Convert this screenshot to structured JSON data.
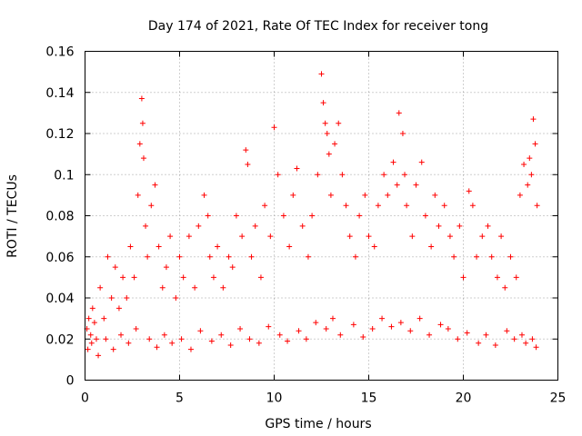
{
  "chart_data": {
    "type": "scatter",
    "title": "Day 174 of 2021, Rate Of TEC Index for receiver tong",
    "xlabel": "GPS time / hours",
    "ylabel": "ROTI / TECUs",
    "xlim": [
      0,
      25
    ],
    "ylim": [
      0,
      0.16
    ],
    "x_ticks": [
      0,
      5,
      10,
      15,
      20,
      25
    ],
    "y_ticks": [
      0,
      0.02,
      0.04,
      0.06,
      0.08,
      0.1,
      0.12,
      0.14,
      0.16
    ],
    "x_tick_labels": [
      "0",
      "5",
      "10",
      "15",
      "20",
      "25"
    ],
    "y_tick_labels": [
      "0",
      "0.02",
      "0.04",
      "0.06",
      "0.08",
      "0.1",
      "0.12",
      "0.14",
      "0.16"
    ],
    "grid": true,
    "marker": "+",
    "color": "#ff0000",
    "series": [
      {
        "x": [
          0.1,
          0.2,
          0.3,
          0.4,
          0.5,
          0.6,
          0.8,
          1.0,
          1.2,
          1.4,
          1.6,
          1.8,
          2.0,
          2.2,
          2.4,
          2.6,
          2.8,
          2.9,
          3.0,
          3.05,
          3.1,
          3.2,
          3.3,
          3.5,
          3.7,
          3.9,
          4.1,
          4.3,
          4.5,
          4.8,
          5.0,
          5.2,
          5.5,
          5.8,
          6.0,
          6.3,
          6.5,
          6.6,
          6.8,
          7.0,
          7.3,
          7.6,
          7.8,
          8.0,
          8.3,
          8.5,
          8.6,
          8.8,
          9.0,
          9.3,
          9.5,
          9.8,
          10.0,
          10.2,
          10.5,
          10.8,
          11.0,
          11.2,
          11.5,
          11.8,
          12.0,
          12.3,
          12.5,
          12.6,
          12.7,
          12.8,
          12.9,
          13.0,
          13.2,
          13.4,
          13.6,
          13.8,
          14.0,
          14.3,
          14.5,
          14.8,
          15.0,
          15.3,
          15.5,
          15.8,
          16.0,
          16.3,
          16.5,
          16.6,
          16.8,
          16.9,
          17.0,
          17.3,
          17.5,
          17.8,
          18.0,
          18.3,
          18.5,
          18.7,
          19.0,
          19.3,
          19.5,
          19.8,
          20.0,
          20.3,
          20.5,
          20.7,
          21.0,
          21.3,
          21.5,
          21.8,
          22.0,
          22.2,
          22.5,
          22.8,
          23.0,
          23.2,
          23.4,
          23.5,
          23.6,
          23.7,
          23.8,
          23.9,
          0.15,
          0.35,
          0.7,
          1.1,
          1.5,
          1.9,
          2.3,
          2.7,
          3.4,
          3.8,
          4.2,
          4.6,
          5.1,
          5.6,
          6.1,
          6.7,
          7.2,
          7.7,
          8.2,
          8.7,
          9.2,
          9.7,
          10.3,
          10.7,
          11.3,
          11.7,
          12.2,
          12.75,
          13.1,
          13.5,
          14.2,
          14.7,
          15.2,
          15.7,
          16.2,
          16.7,
          17.2,
          17.7,
          18.2,
          18.8,
          19.2,
          19.7,
          20.2,
          20.8,
          21.2,
          21.7,
          22.3,
          22.7,
          23.1,
          23.3,
          23.65,
          23.85
        ],
        "y": [
          0.025,
          0.03,
          0.022,
          0.035,
          0.028,
          0.02,
          0.045,
          0.03,
          0.06,
          0.04,
          0.055,
          0.035,
          0.05,
          0.04,
          0.065,
          0.05,
          0.09,
          0.115,
          0.137,
          0.125,
          0.108,
          0.075,
          0.06,
          0.085,
          0.095,
          0.065,
          0.045,
          0.055,
          0.07,
          0.04,
          0.06,
          0.05,
          0.07,
          0.045,
          0.075,
          0.09,
          0.08,
          0.06,
          0.05,
          0.065,
          0.045,
          0.06,
          0.055,
          0.08,
          0.07,
          0.112,
          0.105,
          0.06,
          0.075,
          0.05,
          0.085,
          0.07,
          0.123,
          0.1,
          0.08,
          0.065,
          0.09,
          0.103,
          0.075,
          0.06,
          0.08,
          0.1,
          0.149,
          0.135,
          0.125,
          0.12,
          0.11,
          0.09,
          0.115,
          0.125,
          0.1,
          0.085,
          0.07,
          0.06,
          0.08,
          0.09,
          0.07,
          0.065,
          0.085,
          0.1,
          0.09,
          0.106,
          0.095,
          0.13,
          0.12,
          0.1,
          0.085,
          0.07,
          0.095,
          0.106,
          0.08,
          0.065,
          0.09,
          0.075,
          0.085,
          0.07,
          0.06,
          0.075,
          0.05,
          0.092,
          0.085,
          0.06,
          0.07,
          0.075,
          0.06,
          0.05,
          0.07,
          0.045,
          0.06,
          0.05,
          0.09,
          0.105,
          0.095,
          0.108,
          0.1,
          0.127,
          0.115,
          0.085,
          0.015,
          0.018,
          0.012,
          0.02,
          0.015,
          0.022,
          0.018,
          0.025,
          0.02,
          0.016,
          0.022,
          0.018,
          0.02,
          0.015,
          0.024,
          0.019,
          0.022,
          0.017,
          0.025,
          0.02,
          0.018,
          0.026,
          0.022,
          0.019,
          0.024,
          0.02,
          0.028,
          0.025,
          0.03,
          0.022,
          0.027,
          0.021,
          0.025,
          0.03,
          0.026,
          0.028,
          0.024,
          0.03,
          0.022,
          0.027,
          0.025,
          0.02,
          0.023,
          0.018,
          0.022,
          0.017,
          0.024,
          0.02,
          0.022,
          0.018,
          0.02,
          0.016
        ]
      }
    ]
  }
}
